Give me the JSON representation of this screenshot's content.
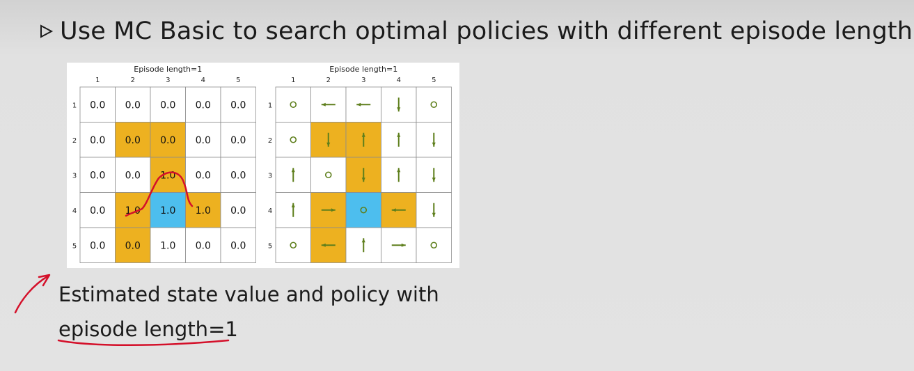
{
  "slide": {
    "bullet_text": "Use MC Basic to search optimal policies with different episode lengths.",
    "caption_line1": "Estimated state value and policy with",
    "caption_line2": "episode length=1"
  },
  "colors": {
    "forbidden": "#edb120",
    "target": "#4dbeee",
    "arrow": "#5e7f1c",
    "grid_line": "#8c8c8c",
    "annotation": "#d4102a"
  },
  "left_panel": {
    "title": "Episode length=1",
    "col_labels": [
      "1",
      "2",
      "3",
      "4",
      "5"
    ],
    "row_labels": [
      "1",
      "2",
      "3",
      "4",
      "5"
    ],
    "cell_types": [
      [
        "n",
        "n",
        "n",
        "n",
        "n"
      ],
      [
        "n",
        "f",
        "f",
        "n",
        "n"
      ],
      [
        "n",
        "n",
        "f",
        "n",
        "n"
      ],
      [
        "n",
        "f",
        "t",
        "f",
        "n"
      ],
      [
        "n",
        "f",
        "n",
        "n",
        "n"
      ]
    ],
    "values": [
      [
        "0.0",
        "0.0",
        "0.0",
        "0.0",
        "0.0"
      ],
      [
        "0.0",
        "0.0",
        "0.0",
        "0.0",
        "0.0"
      ],
      [
        "0.0",
        "0.0",
        "1.0",
        "0.0",
        "0.0"
      ],
      [
        "0.0",
        "1.0",
        "1.0",
        "1.0",
        "0.0"
      ],
      [
        "0.0",
        "0.0",
        "1.0",
        "0.0",
        "0.0"
      ]
    ]
  },
  "right_panel": {
    "title": "Episode length=1",
    "col_labels": [
      "1",
      "2",
      "3",
      "4",
      "5"
    ],
    "row_labels": [
      "1",
      "2",
      "3",
      "4",
      "5"
    ],
    "cell_types": [
      [
        "n",
        "n",
        "n",
        "n",
        "n"
      ],
      [
        "n",
        "f",
        "f",
        "n",
        "n"
      ],
      [
        "n",
        "n",
        "f",
        "n",
        "n"
      ],
      [
        "n",
        "f",
        "t",
        "f",
        "n"
      ],
      [
        "n",
        "f",
        "n",
        "n",
        "n"
      ]
    ],
    "actions": [
      [
        "stay",
        "left",
        "left",
        "down",
        "stay"
      ],
      [
        "stay",
        "down",
        "up",
        "up",
        "down"
      ],
      [
        "up",
        "stay",
        "down",
        "up",
        "down"
      ],
      [
        "up",
        "right",
        "stay",
        "left",
        "down"
      ],
      [
        "stay",
        "left",
        "up",
        "right",
        "stay"
      ]
    ]
  }
}
